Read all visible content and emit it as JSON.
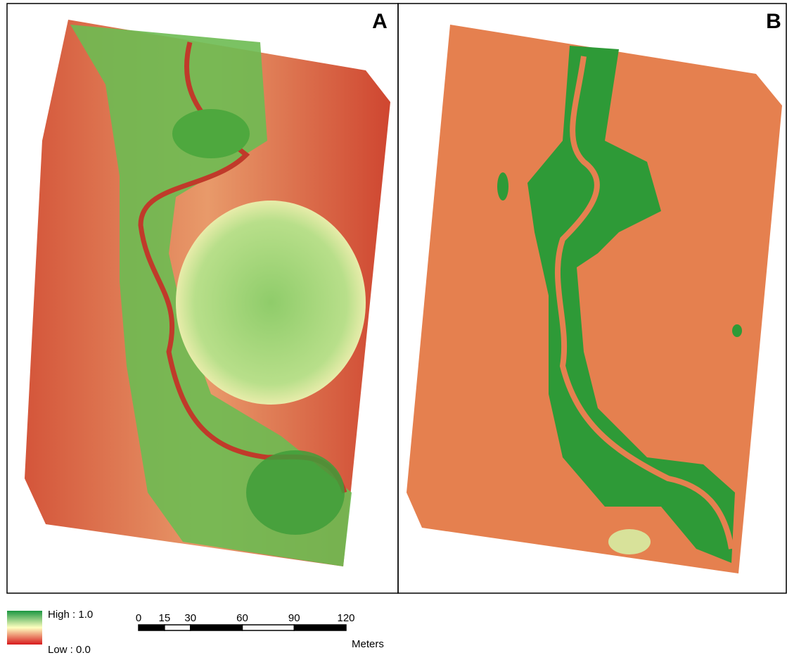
{
  "panels": [
    {
      "label": "A"
    },
    {
      "label": "B"
    }
  ],
  "legend": {
    "high": "High : 1.0",
    "low": "Low : 0.0"
  },
  "scale_bar": {
    "ticks": [
      0,
      15,
      30,
      60,
      90,
      120
    ],
    "unit": "Meters"
  }
}
